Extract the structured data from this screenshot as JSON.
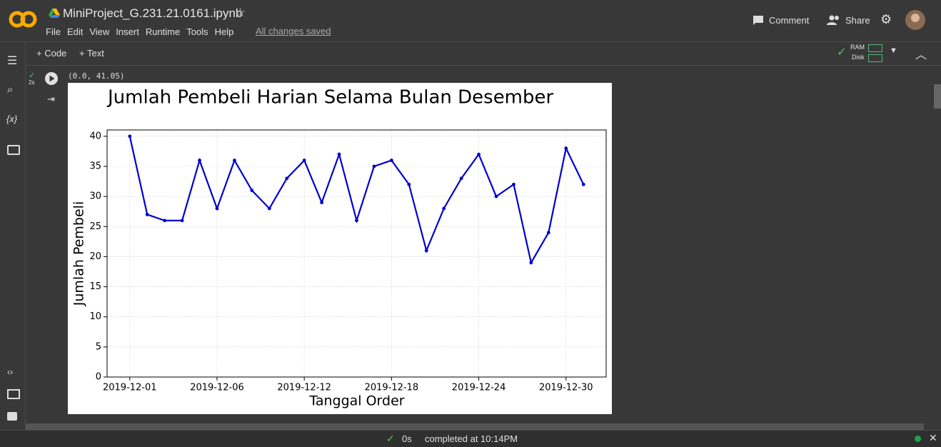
{
  "header": {
    "filename": "MiniProject_G.231.21.0161.ipynb",
    "menu": [
      "File",
      "Edit",
      "View",
      "Insert",
      "Runtime",
      "Tools",
      "Help"
    ],
    "save_status": "All changes saved",
    "comment": "Comment",
    "share": "Share"
  },
  "toolbar": {
    "add_code": "+ Code",
    "add_text": "+ Text",
    "ram": "RAM",
    "disk": "Disk"
  },
  "sidebar": {
    "variables": "{x}"
  },
  "cell": {
    "exec_time": "2s",
    "output_text": "(0.0, 41.05)"
  },
  "status": {
    "time": "0s",
    "message": "completed at 10:14PM"
  },
  "chart_data": {
    "type": "line",
    "title": "Jumlah Pembeli Harian Selama Bulan Desember",
    "x_label": "Tanggal Order",
    "y_label": "Jumlah Pembeli",
    "categories": [
      "2019-12-01",
      null,
      null,
      null,
      null,
      "2019-12-06",
      null,
      null,
      null,
      null,
      "2019-12-12",
      null,
      null,
      null,
      null,
      "2019-12-18",
      null,
      null,
      null,
      null,
      "2019-12-24",
      null,
      null,
      null,
      null,
      "2019-12-30",
      null
    ],
    "series": [
      {
        "name": "Jumlah Pembeli",
        "color": "#0000cd",
        "values": [
          40,
          27,
          26,
          26,
          36,
          28,
          36,
          31,
          28,
          33,
          36,
          29,
          37,
          26,
          35,
          36,
          32,
          21,
          28,
          33,
          37,
          30,
          32,
          19,
          24,
          38,
          32
        ]
      }
    ],
    "ylim": [
      0,
      41.05
    ],
    "yticks": [
      0,
      5,
      10,
      15,
      20,
      25,
      30,
      35,
      40
    ],
    "grid": true
  }
}
